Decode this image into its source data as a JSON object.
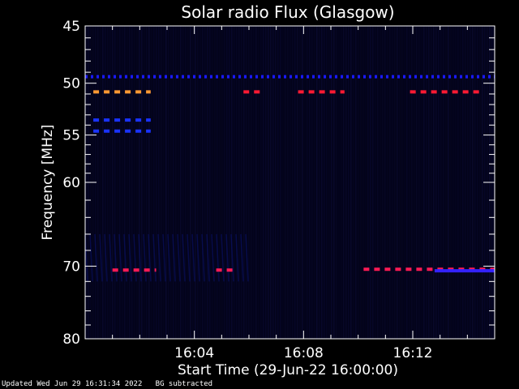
{
  "chart_data": {
    "type": "heatmap",
    "title": "Solar radio Flux (Glasgow)",
    "xlabel": "Start Time (29-Jun-22 16:00:00)",
    "ylabel": "Frequency [MHz]",
    "x_unit": "minutes after 16:00:00",
    "xlim": [
      0,
      15.0
    ],
    "ylim": [
      45,
      80
    ],
    "y_scale": "log",
    "x_ticks": [
      {
        "value": 4,
        "label": "16:04"
      },
      {
        "value": 8,
        "label": "16:08"
      },
      {
        "value": 12,
        "label": "16:12"
      }
    ],
    "y_ticks": [
      {
        "value": 45,
        "label": "45"
      },
      {
        "value": 50,
        "label": "50"
      },
      {
        "value": 55,
        "label": "55"
      },
      {
        "value": 60,
        "label": "60"
      },
      {
        "value": 70,
        "label": "70"
      },
      {
        "value": 80,
        "label": "80"
      }
    ],
    "background": "BG subtracted",
    "emission_bands": [
      {
        "freq": 49.4,
        "t_start": 0.0,
        "t_end": 15.0,
        "color": "#1a1aff",
        "dash": "dotted"
      },
      {
        "freq": 50.8,
        "t_start": 0.3,
        "t_end": 2.4,
        "color": "#ff9933",
        "dash": "dashed"
      },
      {
        "freq": 50.8,
        "t_start": 5.8,
        "t_end": 6.5,
        "color": "#ff1a33",
        "dash": "dashed"
      },
      {
        "freq": 50.8,
        "t_start": 7.8,
        "t_end": 9.5,
        "color": "#ff1a33",
        "dash": "dashed"
      },
      {
        "freq": 50.8,
        "t_start": 11.9,
        "t_end": 14.6,
        "color": "#ff1a33",
        "dash": "dashed"
      },
      {
        "freq": 53.5,
        "t_start": 0.3,
        "t_end": 2.4,
        "color": "#1a33ff",
        "dash": "dashed"
      },
      {
        "freq": 54.6,
        "t_start": 0.3,
        "t_end": 2.4,
        "color": "#1a33ff",
        "dash": "dashed"
      },
      {
        "freq": 70.5,
        "t_start": 1.0,
        "t_end": 2.6,
        "color": "#ff1a55",
        "dash": "dashed"
      },
      {
        "freq": 70.5,
        "t_start": 4.8,
        "t_end": 5.4,
        "color": "#ff1a55",
        "dash": "dashed"
      },
      {
        "freq": 70.4,
        "t_start": 10.2,
        "t_end": 15.0,
        "color": "#ff1a55",
        "dash": "dashed"
      },
      {
        "freq": 70.6,
        "t_start": 12.8,
        "t_end": 15.0,
        "color": "#3322ff",
        "dash": "solid"
      }
    ],
    "diffuse_regions": [
      {
        "f_start": 66.0,
        "f_end": 72.0,
        "t_start": 0.0,
        "t_end": 6.0,
        "color": "#0d1a99",
        "level": 0.35
      }
    ]
  },
  "footer": {
    "updated": "Updated Wed Jun 29 16:31:34 2022",
    "note": "BG subtracted"
  }
}
